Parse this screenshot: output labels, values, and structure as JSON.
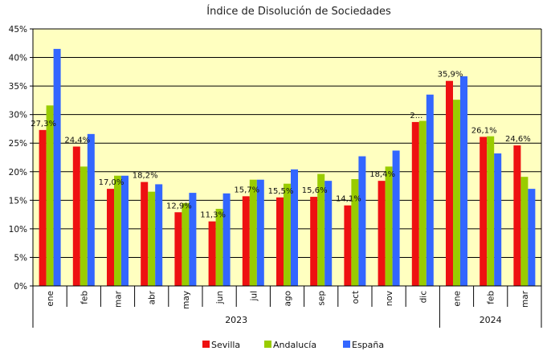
{
  "chart_data": {
    "type": "bar",
    "title": "Índice de Disolución de Sociedades",
    "categories": [
      "ene",
      "feb",
      "mar",
      "abr",
      "may",
      "jun",
      "jul",
      "ago",
      "sep",
      "oct",
      "nov",
      "dic",
      "ene",
      "feb",
      "mar"
    ],
    "groups": [
      {
        "label": "2023",
        "count": 12
      },
      {
        "label": "2024",
        "count": 3
      }
    ],
    "ylim": [
      0,
      45
    ],
    "yticks": [
      "0%",
      "5%",
      "10%",
      "15%",
      "20%",
      "25%",
      "30%",
      "35%",
      "40%",
      "45%"
    ],
    "ytick_values": [
      0,
      5,
      10,
      15,
      20,
      25,
      30,
      35,
      40,
      45
    ],
    "series": [
      {
        "name": "Sevilla",
        "color": "#ee1111",
        "values": [
          27.3,
          24.4,
          17.0,
          18.2,
          12.9,
          11.3,
          15.7,
          15.5,
          15.6,
          14.1,
          18.4,
          28.7,
          35.9,
          26.1,
          24.6
        ]
      },
      {
        "name": "Andalucía",
        "color": "#99cc00",
        "values": [
          31.6,
          20.9,
          19.3,
          16.5,
          14.5,
          13.5,
          18.6,
          17.9,
          19.6,
          18.7,
          20.9,
          28.9,
          32.6,
          26.2,
          19.1
        ]
      },
      {
        "name": "España",
        "color": "#3366ff",
        "values": [
          41.5,
          26.6,
          19.3,
          17.8,
          16.3,
          16.2,
          18.6,
          20.4,
          18.4,
          22.7,
          23.7,
          33.5,
          36.7,
          23.2,
          17.0
        ]
      }
    ],
    "data_labels": [
      "27,3%",
      "24,4%",
      "17,0%",
      "18,2%",
      "12,9%",
      "11,3%",
      "15,7%",
      "15,5%",
      "15,6%",
      "14,1%",
      "18,4%",
      "2...",
      "35,9%",
      "26,1%",
      "24,6%"
    ],
    "plot_bg": "#ffffc0",
    "grid": true,
    "legend_position": "bottom"
  }
}
